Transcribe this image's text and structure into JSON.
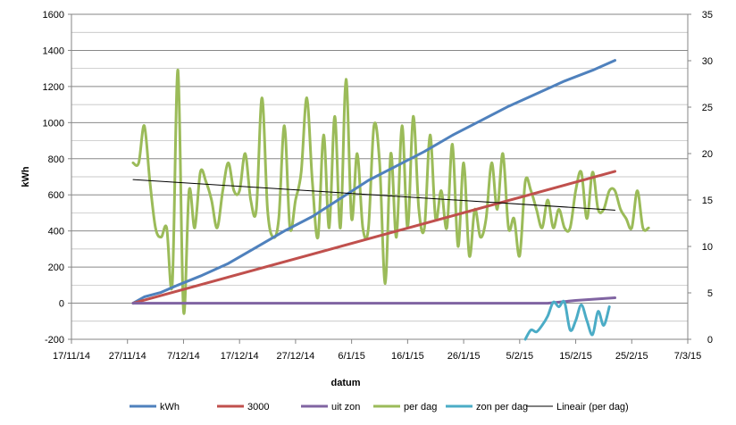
{
  "chart_data": {
    "type": "line",
    "title": "",
    "xlabel": "datum",
    "ylabel": "kWh",
    "y2label": "",
    "ylim": [
      -200,
      1600
    ],
    "y2lim": [
      0,
      35
    ],
    "xlim": [
      "2014-11-17",
      "2015-03-07"
    ],
    "x_ticks": [
      "17/11/14",
      "27/11/14",
      "7/12/14",
      "17/12/14",
      "27/12/14",
      "6/1/15",
      "16/1/15",
      "26/1/15",
      "5/2/15",
      "15/2/15",
      "25/2/15",
      "7/3/15"
    ],
    "x_tick_dates": [
      "2014-11-17",
      "2014-11-27",
      "2014-12-07",
      "2014-12-17",
      "2014-12-27",
      "2015-01-06",
      "2015-01-16",
      "2015-01-26",
      "2015-02-05",
      "2015-02-15",
      "2015-02-25",
      "2015-03-07"
    ],
    "y_ticks": [
      "-200",
      "0",
      "200",
      "400",
      "600",
      "800",
      "1000",
      "1200",
      "1400",
      "1600"
    ],
    "y2_ticks": [
      "0",
      "5",
      "10",
      "15",
      "20",
      "25",
      "30",
      "35"
    ],
    "grid": true,
    "legend": "bottom",
    "series": [
      {
        "name": "kWh",
        "axis": "left",
        "color": "#4f81bd",
        "smooth": false,
        "points": [
          [
            "2014-11-28",
            0
          ],
          [
            "2014-11-30",
            35
          ],
          [
            "2014-12-03",
            60
          ],
          [
            "2014-12-06",
            100
          ],
          [
            "2014-12-10",
            150
          ],
          [
            "2014-12-15",
            220
          ],
          [
            "2014-12-20",
            310
          ],
          [
            "2014-12-25",
            400
          ],
          [
            "2014-12-30",
            480
          ],
          [
            "2015-01-04",
            580
          ],
          [
            "2015-01-09",
            680
          ],
          [
            "2015-01-14",
            760
          ],
          [
            "2015-01-19",
            840
          ],
          [
            "2015-01-24",
            930
          ],
          [
            "2015-01-29",
            1010
          ],
          [
            "2015-02-03",
            1090
          ],
          [
            "2015-02-08",
            1160
          ],
          [
            "2015-02-13",
            1230
          ],
          [
            "2015-02-18",
            1290
          ],
          [
            "2015-02-22",
            1345
          ]
        ]
      },
      {
        "name": "3000",
        "axis": "left",
        "color": "#c0504d",
        "smooth": false,
        "points": [
          [
            "2014-11-28",
            0
          ],
          [
            "2015-02-22",
            730
          ]
        ]
      },
      {
        "name": "uit zon",
        "axis": "left",
        "color": "#8064a2",
        "smooth": false,
        "points": [
          [
            "2014-11-28",
            0
          ],
          [
            "2015-02-10",
            0
          ],
          [
            "2015-02-15",
            15
          ],
          [
            "2015-02-22",
            30
          ]
        ]
      },
      {
        "name": "per dag",
        "axis": "right",
        "color": "#9bbb59",
        "smooth": true,
        "points": [
          [
            "2014-11-28",
            19
          ],
          [
            "2014-11-29",
            19
          ],
          [
            "2014-11-30",
            23
          ],
          [
            "2014-12-01",
            17
          ],
          [
            "2014-12-02",
            12
          ],
          [
            "2014-12-03",
            11
          ],
          [
            "2014-12-04",
            12
          ],
          [
            "2014-12-05",
            6
          ],
          [
            "2014-12-06",
            29
          ],
          [
            "2014-12-07",
            3
          ],
          [
            "2014-12-08",
            16
          ],
          [
            "2014-12-09",
            12
          ],
          [
            "2014-12-10",
            18
          ],
          [
            "2014-12-11",
            17
          ],
          [
            "2014-12-12",
            15
          ],
          [
            "2014-12-13",
            12
          ],
          [
            "2014-12-14",
            16
          ],
          [
            "2014-12-15",
            19
          ],
          [
            "2014-12-16",
            16
          ],
          [
            "2014-12-17",
            16
          ],
          [
            "2014-12-18",
            20
          ],
          [
            "2014-12-19",
            15
          ],
          [
            "2014-12-20",
            14
          ],
          [
            "2014-12-21",
            26
          ],
          [
            "2014-12-22",
            14
          ],
          [
            "2014-12-23",
            11
          ],
          [
            "2014-12-24",
            13
          ],
          [
            "2014-12-25",
            23
          ],
          [
            "2014-12-26",
            12
          ],
          [
            "2014-12-27",
            15
          ],
          [
            "2014-12-28",
            18
          ],
          [
            "2014-12-29",
            26
          ],
          [
            "2014-12-30",
            17
          ],
          [
            "2014-12-31",
            11
          ],
          [
            "2015-01-01",
            22
          ],
          [
            "2015-01-02",
            12
          ],
          [
            "2015-01-03",
            24
          ],
          [
            "2015-01-04",
            12
          ],
          [
            "2015-01-05",
            28
          ],
          [
            "2015-01-06",
            13
          ],
          [
            "2015-01-07",
            20
          ],
          [
            "2015-01-08",
            12
          ],
          [
            "2015-01-09",
            12
          ],
          [
            "2015-01-10",
            23
          ],
          [
            "2015-01-11",
            19
          ],
          [
            "2015-01-12",
            6
          ],
          [
            "2015-01-13",
            20
          ],
          [
            "2015-01-14",
            11
          ],
          [
            "2015-01-15",
            23
          ],
          [
            "2015-01-16",
            12
          ],
          [
            "2015-01-17",
            24
          ],
          [
            "2015-01-18",
            14
          ],
          [
            "2015-01-19",
            12
          ],
          [
            "2015-01-20",
            22
          ],
          [
            "2015-01-21",
            13
          ],
          [
            "2015-01-22",
            16
          ],
          [
            "2015-01-23",
            12
          ],
          [
            "2015-01-24",
            21
          ],
          [
            "2015-01-25",
            10
          ],
          [
            "2015-01-26",
            19
          ],
          [
            "2015-01-27",
            9
          ],
          [
            "2015-01-28",
            14
          ],
          [
            "2015-01-29",
            11
          ],
          [
            "2015-01-30",
            13
          ],
          [
            "2015-01-31",
            19
          ],
          [
            "2015-02-01",
            14
          ],
          [
            "2015-02-02",
            20
          ],
          [
            "2015-02-03",
            12
          ],
          [
            "2015-02-04",
            13
          ],
          [
            "2015-02-05",
            9
          ],
          [
            "2015-02-06",
            17
          ],
          [
            "2015-02-07",
            16
          ],
          [
            "2015-02-08",
            14
          ],
          [
            "2015-02-09",
            12
          ],
          [
            "2015-02-10",
            15
          ],
          [
            "2015-02-11",
            12
          ],
          [
            "2015-02-12",
            14
          ],
          [
            "2015-02-13",
            12
          ],
          [
            "2015-02-14",
            12
          ],
          [
            "2015-02-15",
            16
          ],
          [
            "2015-02-16",
            18
          ],
          [
            "2015-02-17",
            13
          ],
          [
            "2015-02-18",
            18
          ],
          [
            "2015-02-19",
            14
          ],
          [
            "2015-02-20",
            14
          ],
          [
            "2015-02-21",
            16
          ],
          [
            "2015-02-22",
            16
          ],
          [
            "2015-02-23",
            14
          ],
          [
            "2015-02-24",
            13
          ],
          [
            "2015-02-25",
            12
          ],
          [
            "2015-02-26",
            16
          ],
          [
            "2015-02-27",
            12
          ],
          [
            "2015-02-28",
            12
          ]
        ]
      },
      {
        "name": "zon per dag",
        "axis": "right",
        "color": "#4bacc6",
        "smooth": true,
        "points": [
          [
            "2015-02-06",
            0
          ],
          [
            "2015-02-07",
            1
          ],
          [
            "2015-02-08",
            0.8
          ],
          [
            "2015-02-09",
            1.5
          ],
          [
            "2015-02-10",
            2.5
          ],
          [
            "2015-02-11",
            4
          ],
          [
            "2015-02-12",
            3.5
          ],
          [
            "2015-02-13",
            4
          ],
          [
            "2015-02-14",
            1
          ],
          [
            "2015-02-15",
            2
          ],
          [
            "2015-02-16",
            3.7
          ],
          [
            "2015-02-17",
            2
          ],
          [
            "2015-02-18",
            0.5
          ],
          [
            "2015-02-19",
            3
          ],
          [
            "2015-02-20",
            1.5
          ],
          [
            "2015-02-21",
            3.5
          ]
        ]
      },
      {
        "name": "Lineair (per dag)",
        "axis": "right",
        "color": "#000000",
        "smooth": false,
        "points": [
          [
            "2014-11-28",
            17.2
          ],
          [
            "2015-02-22",
            13.9
          ]
        ]
      }
    ]
  }
}
